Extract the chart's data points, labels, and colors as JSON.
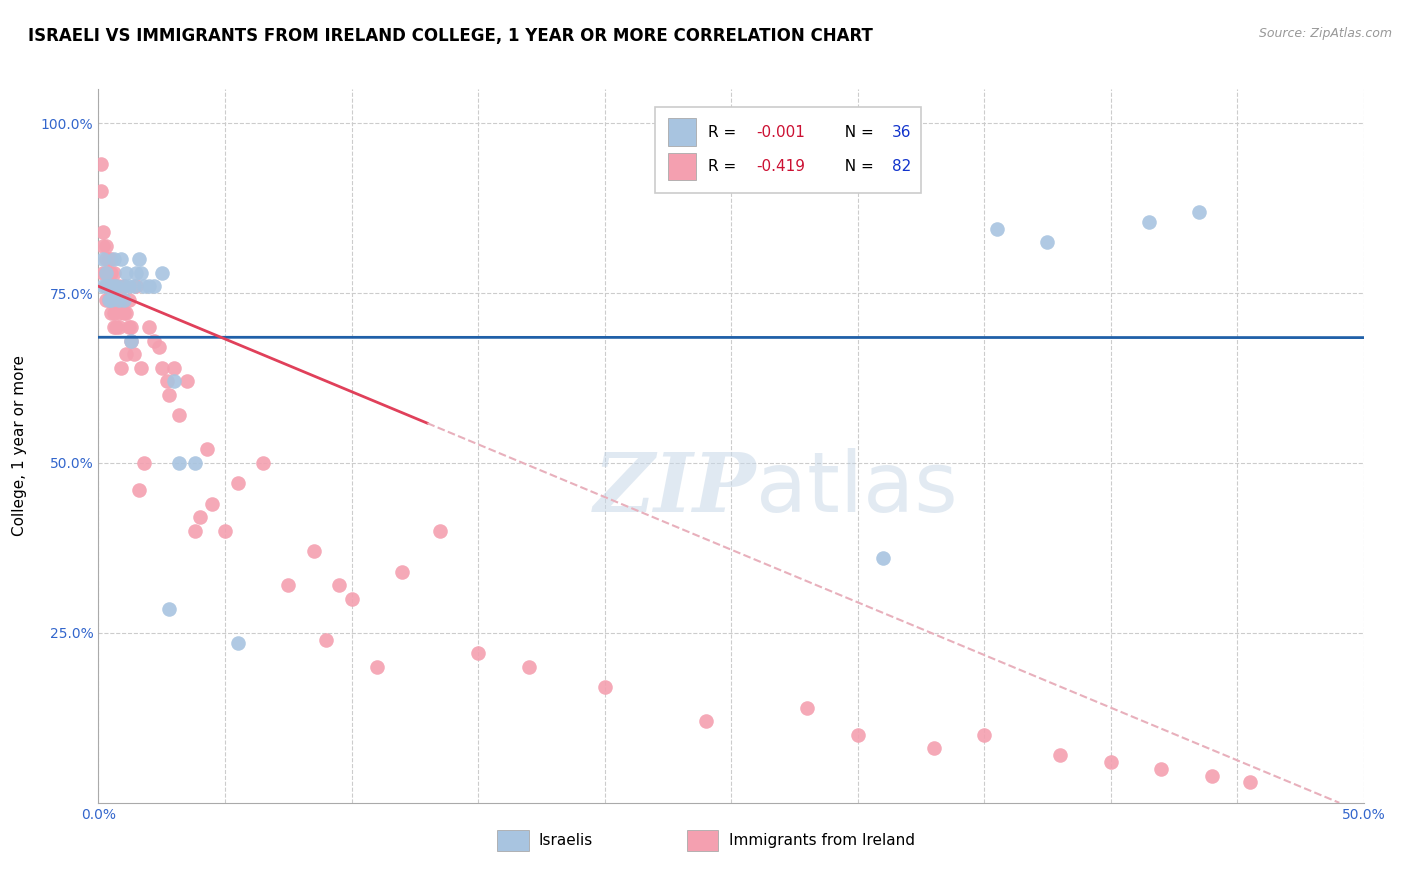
{
  "title": "ISRAELI VS IMMIGRANTS FROM IRELAND COLLEGE, 1 YEAR OR MORE CORRELATION CHART",
  "source": "Source: ZipAtlas.com",
  "ylabel": "College, 1 year or more",
  "xlim": [
    0.0,
    0.5
  ],
  "ylim": [
    0.0,
    1.05
  ],
  "xticks": [
    0.0,
    0.05,
    0.1,
    0.15,
    0.2,
    0.25,
    0.3,
    0.35,
    0.4,
    0.45,
    0.5
  ],
  "xticklabels": [
    "0.0%",
    "",
    "",
    "",
    "",
    "",
    "",
    "",
    "",
    "",
    "50.0%"
  ],
  "yticks": [
    0.25,
    0.5,
    0.75,
    1.0
  ],
  "yticklabels": [
    "25.0%",
    "50.0%",
    "75.0%",
    "100.0%"
  ],
  "blue_color": "#a8c4e0",
  "pink_color": "#f4a0b0",
  "trend_blue_color": "#2060a8",
  "trend_pink_solid_color": "#e0405a",
  "trend_pink_dash_color": "#e8b0bc",
  "blue_x": [
    0.002,
    0.002,
    0.003,
    0.003,
    0.004,
    0.004,
    0.005,
    0.005,
    0.006,
    0.006,
    0.007,
    0.008,
    0.009,
    0.01,
    0.01,
    0.011,
    0.012,
    0.013,
    0.014,
    0.015,
    0.016,
    0.017,
    0.018,
    0.02,
    0.022,
    0.025,
    0.028,
    0.03,
    0.032,
    0.038,
    0.055,
    0.31,
    0.355,
    0.375,
    0.415,
    0.435
  ],
  "blue_y": [
    0.8,
    0.76,
    0.78,
    0.76,
    0.76,
    0.74,
    0.76,
    0.74,
    0.8,
    0.76,
    0.76,
    0.74,
    0.8,
    0.76,
    0.74,
    0.78,
    0.76,
    0.68,
    0.76,
    0.78,
    0.8,
    0.78,
    0.76,
    0.76,
    0.76,
    0.78,
    0.285,
    0.62,
    0.5,
    0.5,
    0.235,
    0.36,
    0.845,
    0.825,
    0.855,
    0.87
  ],
  "pink_x": [
    0.001,
    0.001,
    0.002,
    0.002,
    0.002,
    0.003,
    0.003,
    0.003,
    0.003,
    0.003,
    0.004,
    0.004,
    0.004,
    0.004,
    0.005,
    0.005,
    0.005,
    0.005,
    0.005,
    0.006,
    0.006,
    0.006,
    0.006,
    0.007,
    0.007,
    0.007,
    0.008,
    0.008,
    0.008,
    0.009,
    0.009,
    0.01,
    0.01,
    0.01,
    0.011,
    0.011,
    0.012,
    0.012,
    0.013,
    0.013,
    0.014,
    0.015,
    0.016,
    0.017,
    0.018,
    0.02,
    0.022,
    0.024,
    0.025,
    0.027,
    0.028,
    0.03,
    0.032,
    0.035,
    0.038,
    0.04,
    0.043,
    0.045,
    0.05,
    0.055,
    0.065,
    0.075,
    0.085,
    0.09,
    0.095,
    0.1,
    0.11,
    0.12,
    0.135,
    0.15,
    0.17,
    0.2,
    0.24,
    0.28,
    0.3,
    0.33,
    0.35,
    0.38,
    0.4,
    0.42,
    0.44,
    0.455
  ],
  "pink_y": [
    0.9,
    0.94,
    0.84,
    0.82,
    0.78,
    0.82,
    0.78,
    0.76,
    0.8,
    0.74,
    0.78,
    0.76,
    0.74,
    0.8,
    0.76,
    0.74,
    0.72,
    0.78,
    0.8,
    0.78,
    0.76,
    0.72,
    0.7,
    0.76,
    0.74,
    0.7,
    0.76,
    0.72,
    0.7,
    0.74,
    0.64,
    0.76,
    0.74,
    0.72,
    0.72,
    0.66,
    0.7,
    0.74,
    0.68,
    0.7,
    0.66,
    0.76,
    0.46,
    0.64,
    0.5,
    0.7,
    0.68,
    0.67,
    0.64,
    0.62,
    0.6,
    0.64,
    0.57,
    0.62,
    0.4,
    0.42,
    0.52,
    0.44,
    0.4,
    0.47,
    0.5,
    0.32,
    0.37,
    0.24,
    0.32,
    0.3,
    0.2,
    0.34,
    0.4,
    0.22,
    0.2,
    0.17,
    0.12,
    0.14,
    0.1,
    0.08,
    0.1,
    0.07,
    0.06,
    0.05,
    0.04,
    0.03
  ],
  "blue_trend_y_intercept": 0.685,
  "blue_trend_slope": -0.001,
  "pink_trend_y_intercept": 0.76,
  "pink_trend_slope": -1.55
}
